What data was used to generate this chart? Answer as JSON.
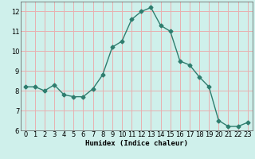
{
  "xlabel": "Humidex (Indice chaleur)",
  "x": [
    0,
    1,
    2,
    3,
    4,
    5,
    6,
    7,
    8,
    9,
    10,
    11,
    12,
    13,
    14,
    15,
    16,
    17,
    18,
    19,
    20,
    21,
    22,
    23
  ],
  "y": [
    8.2,
    8.2,
    8.0,
    8.3,
    7.8,
    7.7,
    7.7,
    8.1,
    8.8,
    10.2,
    10.5,
    11.6,
    12.0,
    12.2,
    11.3,
    11.0,
    9.5,
    9.3,
    8.7,
    8.2,
    6.5,
    6.2,
    6.2,
    6.4
  ],
  "line_color": "#2e7d6e",
  "marker": "D",
  "marker_size": 2.5,
  "line_width": 1.0,
  "bg_color": "#cff0eb",
  "grid_color": "#e8b0b0",
  "ylim": [
    6,
    12.5
  ],
  "xlim": [
    -0.5,
    23.5
  ],
  "yticks": [
    6,
    7,
    8,
    9,
    10,
    11,
    12
  ],
  "xticks": [
    0,
    1,
    2,
    3,
    4,
    5,
    6,
    7,
    8,
    9,
    10,
    11,
    12,
    13,
    14,
    15,
    16,
    17,
    18,
    19,
    20,
    21,
    22,
    23
  ],
  "xlabel_fontsize": 6.5,
  "tick_fontsize": 6.0
}
